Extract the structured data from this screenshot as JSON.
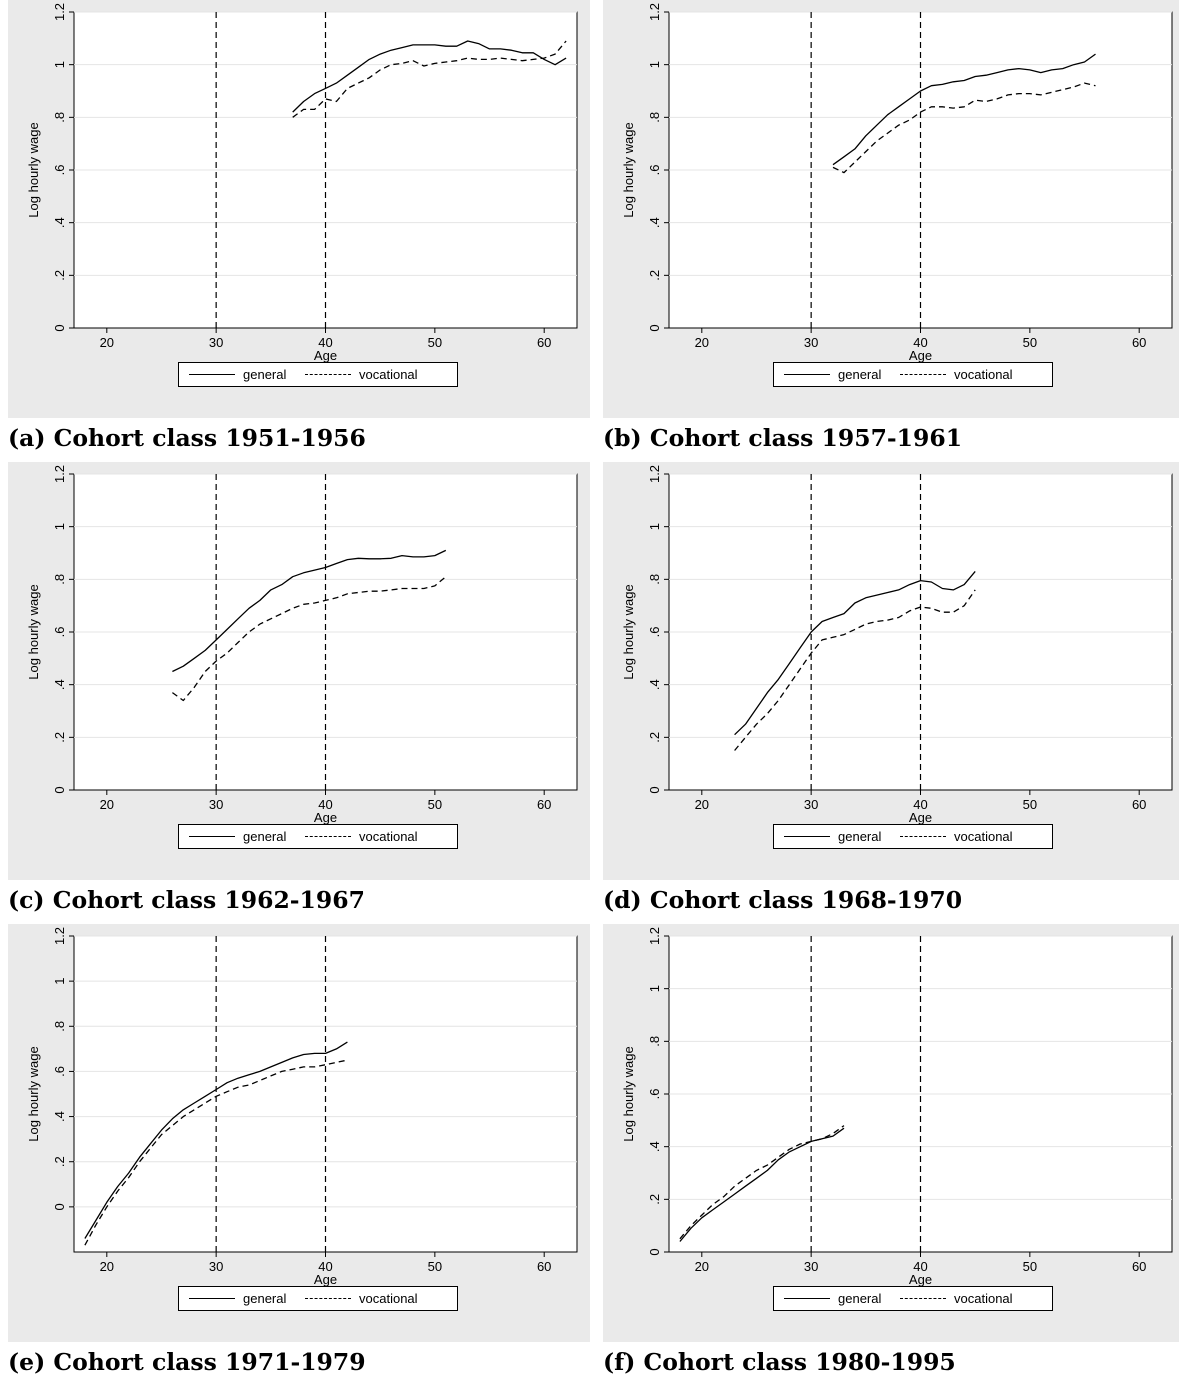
{
  "chart_data": [
    {
      "type": "line",
      "caption": {
        "label": "(a)",
        "text": "Cohort class 1951-1956"
      },
      "xlabel": "Age",
      "ylabel": "Log hourly wage",
      "xlim": [
        17,
        63
      ],
      "ylim": [
        0,
        1.2
      ],
      "x_ticks": [
        20,
        30,
        40,
        50,
        60
      ],
      "y_ticks": [
        0,
        0.2,
        0.4,
        0.6,
        0.8,
        1,
        1.2
      ],
      "y_tick_labels": [
        "0",
        ".2",
        ".4",
        ".6",
        ".8",
        "1",
        "1.2"
      ],
      "vlines": [
        30,
        40
      ],
      "grid": true,
      "legend": {
        "position": "bottom",
        "entries": [
          "general",
          "vocational"
        ]
      },
      "series": [
        {
          "name": "general",
          "style": "solid",
          "x": [
            37,
            38,
            39,
            40,
            41,
            42,
            43,
            44,
            45,
            46,
            47,
            48,
            49,
            50,
            51,
            52,
            53,
            54,
            55,
            56,
            57,
            58,
            59,
            60,
            61,
            62
          ],
          "y": [
            0.82,
            0.86,
            0.89,
            0.91,
            0.93,
            0.96,
            0.99,
            1.02,
            1.04,
            1.055,
            1.065,
            1.075,
            1.075,
            1.075,
            1.07,
            1.07,
            1.09,
            1.08,
            1.06,
            1.06,
            1.055,
            1.045,
            1.045,
            1.02,
            1.0,
            1.025
          ]
        },
        {
          "name": "vocational",
          "style": "dashed",
          "x": [
            37,
            38,
            39,
            40,
            41,
            42,
            43,
            44,
            45,
            46,
            47,
            48,
            49,
            50,
            51,
            52,
            53,
            54,
            55,
            56,
            57,
            58,
            59,
            60,
            61,
            62
          ],
          "y": [
            0.8,
            0.83,
            0.83,
            0.87,
            0.86,
            0.91,
            0.93,
            0.95,
            0.98,
            1.0,
            1.005,
            1.015,
            0.995,
            1.005,
            1.01,
            1.015,
            1.025,
            1.02,
            1.02,
            1.025,
            1.02,
            1.015,
            1.02,
            1.025,
            1.04,
            1.09
          ]
        }
      ]
    },
    {
      "type": "line",
      "caption": {
        "label": "(b)",
        "text": "Cohort class 1957-1961"
      },
      "xlabel": "Age",
      "ylabel": "Log hourly wage",
      "xlim": [
        17,
        63
      ],
      "ylim": [
        0,
        1.2
      ],
      "x_ticks": [
        20,
        30,
        40,
        50,
        60
      ],
      "y_ticks": [
        0,
        0.2,
        0.4,
        0.6,
        0.8,
        1,
        1.2
      ],
      "y_tick_labels": [
        "0",
        ".2",
        ".4",
        ".6",
        ".8",
        "1",
        "1.2"
      ],
      "vlines": [
        30,
        40
      ],
      "grid": true,
      "legend": {
        "position": "bottom",
        "entries": [
          "general",
          "vocational"
        ]
      },
      "series": [
        {
          "name": "general",
          "style": "solid",
          "x": [
            32,
            33,
            34,
            35,
            36,
            37,
            38,
            39,
            40,
            41,
            42,
            43,
            44,
            45,
            46,
            47,
            48,
            49,
            50,
            51,
            52,
            53,
            54,
            55,
            56
          ],
          "y": [
            0.62,
            0.65,
            0.68,
            0.73,
            0.77,
            0.81,
            0.84,
            0.87,
            0.9,
            0.92,
            0.925,
            0.935,
            0.94,
            0.955,
            0.96,
            0.97,
            0.98,
            0.985,
            0.98,
            0.97,
            0.98,
            0.985,
            1.0,
            1.01,
            1.04
          ]
        },
        {
          "name": "vocational",
          "style": "dashed",
          "x": [
            32,
            33,
            34,
            35,
            36,
            37,
            38,
            39,
            40,
            41,
            42,
            43,
            44,
            45,
            46,
            47,
            48,
            49,
            50,
            51,
            52,
            53,
            54,
            55,
            56
          ],
          "y": [
            0.61,
            0.59,
            0.63,
            0.67,
            0.71,
            0.74,
            0.77,
            0.79,
            0.82,
            0.84,
            0.84,
            0.835,
            0.84,
            0.865,
            0.86,
            0.87,
            0.885,
            0.89,
            0.89,
            0.885,
            0.895,
            0.905,
            0.915,
            0.93,
            0.92
          ]
        }
      ]
    },
    {
      "type": "line",
      "caption": {
        "label": "(c)",
        "text": "Cohort class 1962-1967"
      },
      "xlabel": "Age",
      "ylabel": "Log hourly wage",
      "xlim": [
        17,
        63
      ],
      "ylim": [
        0,
        1.2
      ],
      "x_ticks": [
        20,
        30,
        40,
        50,
        60
      ],
      "y_ticks": [
        0,
        0.2,
        0.4,
        0.6,
        0.8,
        1,
        1.2
      ],
      "y_tick_labels": [
        "0",
        ".2",
        ".4",
        ".6",
        ".8",
        "1",
        "1.2"
      ],
      "vlines": [
        30,
        40
      ],
      "grid": true,
      "legend": {
        "position": "bottom",
        "entries": [
          "general",
          "vocational"
        ]
      },
      "series": [
        {
          "name": "general",
          "style": "solid",
          "x": [
            26,
            27,
            28,
            29,
            30,
            31,
            32,
            33,
            34,
            35,
            36,
            37,
            38,
            39,
            40,
            41,
            42,
            43,
            44,
            45,
            46,
            47,
            48,
            49,
            50,
            51
          ],
          "y": [
            0.45,
            0.47,
            0.5,
            0.53,
            0.57,
            0.61,
            0.65,
            0.69,
            0.72,
            0.76,
            0.78,
            0.81,
            0.825,
            0.835,
            0.845,
            0.86,
            0.875,
            0.88,
            0.878,
            0.878,
            0.88,
            0.89,
            0.885,
            0.885,
            0.89,
            0.91
          ]
        },
        {
          "name": "vocational",
          "style": "dashed",
          "x": [
            26,
            27,
            28,
            29,
            30,
            31,
            32,
            33,
            34,
            35,
            36,
            37,
            38,
            39,
            40,
            41,
            42,
            43,
            44,
            45,
            46,
            47,
            48,
            49,
            50,
            51
          ],
          "y": [
            0.37,
            0.34,
            0.39,
            0.45,
            0.49,
            0.52,
            0.56,
            0.6,
            0.63,
            0.65,
            0.67,
            0.69,
            0.705,
            0.71,
            0.72,
            0.73,
            0.745,
            0.75,
            0.755,
            0.755,
            0.76,
            0.765,
            0.765,
            0.765,
            0.775,
            0.81
          ]
        }
      ]
    },
    {
      "type": "line",
      "caption": {
        "label": "(d)",
        "text": "Cohort class 1968-1970"
      },
      "xlabel": "Age",
      "ylabel": "Log hourly wage",
      "xlim": [
        17,
        63
      ],
      "ylim": [
        0,
        1.2
      ],
      "x_ticks": [
        20,
        30,
        40,
        50,
        60
      ],
      "y_ticks": [
        0,
        0.2,
        0.4,
        0.6,
        0.8,
        1,
        1.2
      ],
      "y_tick_labels": [
        "0",
        ".2",
        ".4",
        ".6",
        ".8",
        "1",
        "1.2"
      ],
      "vlines": [
        30,
        40
      ],
      "grid": true,
      "legend": {
        "position": "bottom",
        "entries": [
          "general",
          "vocational"
        ]
      },
      "series": [
        {
          "name": "general",
          "style": "solid",
          "x": [
            23,
            24,
            25,
            26,
            27,
            28,
            29,
            30,
            31,
            32,
            33,
            34,
            35,
            36,
            37,
            38,
            39,
            40,
            41,
            42,
            43,
            44,
            45
          ],
          "y": [
            0.21,
            0.25,
            0.31,
            0.37,
            0.42,
            0.48,
            0.54,
            0.6,
            0.64,
            0.655,
            0.67,
            0.71,
            0.73,
            0.74,
            0.75,
            0.76,
            0.78,
            0.795,
            0.79,
            0.765,
            0.76,
            0.78,
            0.83
          ]
        },
        {
          "name": "vocational",
          "style": "dashed",
          "x": [
            23,
            24,
            25,
            26,
            27,
            28,
            29,
            30,
            31,
            32,
            33,
            34,
            35,
            36,
            37,
            38,
            39,
            40,
            41,
            42,
            43,
            44,
            45
          ],
          "y": [
            0.15,
            0.2,
            0.25,
            0.29,
            0.34,
            0.4,
            0.46,
            0.52,
            0.57,
            0.58,
            0.59,
            0.61,
            0.63,
            0.64,
            0.645,
            0.655,
            0.68,
            0.695,
            0.69,
            0.675,
            0.675,
            0.7,
            0.76
          ]
        }
      ]
    },
    {
      "type": "line",
      "caption": {
        "label": "(e)",
        "text": "Cohort class 1971-1979"
      },
      "xlabel": "Age",
      "ylabel": "Log hourly wage",
      "xlim": [
        17,
        63
      ],
      "ylim": [
        -0.2,
        1.2
      ],
      "x_ticks": [
        20,
        30,
        40,
        50,
        60
      ],
      "y_ticks": [
        0,
        0.2,
        0.4,
        0.6,
        0.8,
        1,
        1.2
      ],
      "y_tick_labels": [
        "0",
        ".2",
        ".4",
        ".6",
        ".8",
        "1",
        "1.2"
      ],
      "vlines": [
        30,
        40
      ],
      "grid": true,
      "legend": {
        "position": "bottom",
        "entries": [
          "general",
          "vocational"
        ]
      },
      "series": [
        {
          "name": "general",
          "style": "solid",
          "x": [
            18,
            19,
            20,
            21,
            22,
            23,
            24,
            25,
            26,
            27,
            28,
            29,
            30,
            31,
            32,
            33,
            34,
            35,
            36,
            37,
            38,
            39,
            40,
            41,
            42
          ],
          "y": [
            -0.14,
            -0.06,
            0.02,
            0.09,
            0.15,
            0.22,
            0.28,
            0.34,
            0.39,
            0.43,
            0.46,
            0.49,
            0.52,
            0.55,
            0.57,
            0.585,
            0.6,
            0.62,
            0.64,
            0.66,
            0.675,
            0.68,
            0.68,
            0.7,
            0.73
          ]
        },
        {
          "name": "vocational",
          "style": "dashed",
          "x": [
            18,
            19,
            20,
            21,
            22,
            23,
            24,
            25,
            26,
            27,
            28,
            29,
            30,
            31,
            32,
            33,
            34,
            35,
            36,
            37,
            38,
            39,
            40,
            41,
            42
          ],
          "y": [
            -0.17,
            -0.08,
            0.0,
            0.07,
            0.13,
            0.2,
            0.26,
            0.32,
            0.36,
            0.4,
            0.43,
            0.46,
            0.49,
            0.51,
            0.53,
            0.54,
            0.56,
            0.58,
            0.6,
            0.61,
            0.62,
            0.62,
            0.63,
            0.64,
            0.65
          ]
        }
      ]
    },
    {
      "type": "line",
      "caption": {
        "label": "(f)",
        "text": "Cohort class 1980-1995"
      },
      "xlabel": "Age",
      "ylabel": "Log hourly wage",
      "xlim": [
        17,
        63
      ],
      "ylim": [
        0,
        1.2
      ],
      "x_ticks": [
        20,
        30,
        40,
        50,
        60
      ],
      "y_ticks": [
        0,
        0.2,
        0.4,
        0.6,
        0.8,
        1,
        1.2
      ],
      "y_tick_labels": [
        "0",
        ".2",
        ".4",
        ".6",
        ".8",
        "1",
        "1.2"
      ],
      "vlines": [
        30,
        40
      ],
      "grid": true,
      "legend": {
        "position": "bottom",
        "entries": [
          "general",
          "vocational"
        ]
      },
      "series": [
        {
          "name": "general",
          "style": "solid",
          "x": [
            18,
            19,
            20,
            21,
            22,
            23,
            24,
            25,
            26,
            27,
            28,
            29,
            30,
            31,
            32,
            33
          ],
          "y": [
            0.04,
            0.09,
            0.13,
            0.16,
            0.19,
            0.22,
            0.25,
            0.28,
            0.31,
            0.35,
            0.38,
            0.4,
            0.42,
            0.43,
            0.44,
            0.47
          ]
        },
        {
          "name": "vocational",
          "style": "dashed",
          "x": [
            18,
            19,
            20,
            21,
            22,
            23,
            24,
            25,
            26,
            27,
            28,
            29,
            30,
            31,
            32,
            33
          ],
          "y": [
            0.05,
            0.1,
            0.14,
            0.18,
            0.21,
            0.25,
            0.28,
            0.31,
            0.33,
            0.36,
            0.39,
            0.41,
            0.42,
            0.43,
            0.45,
            0.48
          ]
        }
      ]
    }
  ]
}
